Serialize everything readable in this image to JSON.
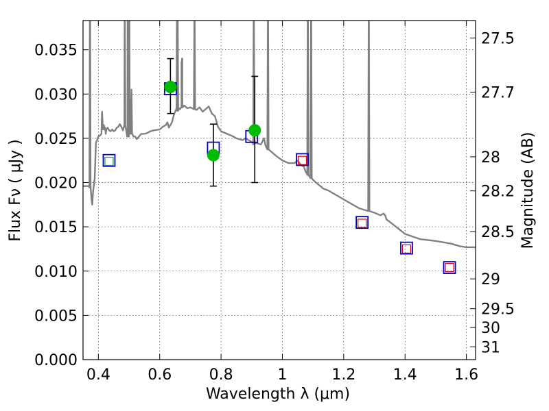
{
  "chart_data": {
    "type": "scatter",
    "xlabel": "Wavelength  λ (μm)",
    "ylabel": "Flux  Fν  ( μJy )",
    "y2label": "Magnitude (AB)",
    "xlim": [
      0.35,
      1.63
    ],
    "ylim": [
      0.0,
      0.0383
    ],
    "xticks": [
      0.4,
      0.6,
      0.8,
      1.0,
      1.2,
      1.4,
      1.6
    ],
    "xtick_labels": [
      "0.4",
      "0.6",
      "0.8",
      "1",
      "1.2",
      "1.4",
      "1.6"
    ],
    "yticks": [
      0.0,
      0.005,
      0.01,
      0.015,
      0.02,
      0.025,
      0.03,
      0.035
    ],
    "ytick_labels": [
      "0.000",
      "0.005",
      "0.010",
      "0.015",
      "0.020",
      "0.025",
      "0.030",
      "0.035"
    ],
    "y2ticks": [
      {
        "label": "27.5",
        "flux": 0.03632
      },
      {
        "label": "27.7",
        "flux": 0.03021
      },
      {
        "label": "28",
        "flux": 0.02291
      },
      {
        "label": "28.2",
        "flux": 0.01906
      },
      {
        "label": "28.5",
        "flux": 0.01446
      },
      {
        "label": "29",
        "flux": 0.00912
      },
      {
        "label": "29.5",
        "flux": 0.00575
      },
      {
        "label": "30",
        "flux": 0.00363
      },
      {
        "label": "31",
        "flux": 0.00145
      }
    ],
    "grid": true,
    "colors": {
      "model": "#808080",
      "model_box": "#0000cc",
      "observed": "#00bb00",
      "synthetic_green": "#00aa00",
      "synthetic_red": "#dd0000",
      "errorbar": "#000000"
    },
    "series": [
      {
        "name": "model spectrum",
        "kind": "line",
        "x": [
          0.35,
          0.37,
          0.375,
          0.378,
          0.38,
          0.383,
          0.388,
          0.39,
          0.392,
          0.396,
          0.4,
          0.405,
          0.41,
          0.412,
          0.415,
          0.418,
          0.42,
          0.422,
          0.424,
          0.426,
          0.43,
          0.435,
          0.44,
          0.445,
          0.45,
          0.455,
          0.46,
          0.465,
          0.47,
          0.475,
          0.48,
          0.485,
          0.49,
          0.495,
          0.5,
          0.502,
          0.505,
          0.508,
          0.51,
          0.515,
          0.52,
          0.525,
          0.53,
          0.535,
          0.54,
          0.55,
          0.56,
          0.57,
          0.58,
          0.6,
          0.61,
          0.62,
          0.625,
          0.63,
          0.64,
          0.645,
          0.65,
          0.655,
          0.658,
          0.662,
          0.667,
          0.672,
          0.68,
          0.69,
          0.7,
          0.72,
          0.73,
          0.74,
          0.75,
          0.76,
          0.77,
          0.78,
          0.79,
          0.8,
          0.82,
          0.84,
          0.85,
          0.86,
          0.87,
          0.88,
          0.89,
          0.9,
          0.905,
          0.91,
          0.92,
          0.93,
          0.94,
          0.945,
          0.95,
          0.96,
          0.98,
          1.0,
          1.02,
          1.04,
          1.05,
          1.06,
          1.07,
          1.075,
          1.08,
          1.085,
          1.09,
          1.1,
          1.11,
          1.12,
          1.128,
          1.13,
          1.135,
          1.15,
          1.2,
          1.25,
          1.3,
          1.32,
          1.33,
          1.335,
          1.34,
          1.345,
          1.36,
          1.4,
          1.45,
          1.5,
          1.55,
          1.58,
          1.6,
          1.63
        ],
        "y": [
          0.0196,
          0.0196,
          0.0193,
          0.018,
          0.0175,
          0.019,
          0.0205,
          0.0225,
          0.0245,
          0.0248,
          0.0252,
          0.0253,
          0.0255,
          0.028,
          0.026,
          0.0265,
          0.026,
          0.0262,
          0.0255,
          0.026,
          0.0262,
          0.0259,
          0.0258,
          0.026,
          0.0258,
          0.0259,
          0.0262,
          0.0263,
          0.0266,
          0.0263,
          0.0259,
          0.0265,
          0.026,
          0.0252,
          0.0252,
          0.028,
          0.0255,
          0.0305,
          0.0255,
          0.0252,
          0.0252,
          0.0249,
          0.0251,
          0.0253,
          0.0255,
          0.0255,
          0.0256,
          0.0258,
          0.0259,
          0.026,
          0.0263,
          0.0265,
          0.0268,
          0.0262,
          0.0268,
          0.0275,
          0.028,
          0.0285,
          0.0281,
          0.0284,
          0.0283,
          0.0285,
          0.0287,
          0.0284,
          0.0285,
          0.0282,
          0.0285,
          0.028,
          0.0283,
          0.0286,
          0.0278,
          0.0275,
          0.0263,
          0.0258,
          0.0255,
          0.0252,
          0.025,
          0.0249,
          0.0248,
          0.025,
          0.0248,
          0.0246,
          0.0243,
          0.0245,
          0.0244,
          0.0243,
          0.025,
          0.0242,
          0.0238,
          0.0236,
          0.023,
          0.0225,
          0.0222,
          0.0222,
          0.0225,
          0.022,
          0.0218,
          0.0213,
          0.021,
          0.0208,
          0.0206,
          0.0203,
          0.02,
          0.0197,
          0.0195,
          0.0194,
          0.0193,
          0.0191,
          0.0181,
          0.0171,
          0.0166,
          0.0163,
          0.0165,
          0.0163,
          0.0158,
          0.0157,
          0.0153,
          0.0142,
          0.0136,
          0.0134,
          0.0131,
          0.0128,
          0.0127,
          0.0127
        ],
        "emission_lines": [
          {
            "x": 0.3727,
            "peak": 0.0383
          },
          {
            "x": 0.4861,
            "peak": 0.0383
          },
          {
            "x": 0.4959,
            "peak": 0.0383
          },
          {
            "x": 0.5007,
            "peak": 0.0383
          },
          {
            "x": 0.6563,
            "peak": 0.0383
          },
          {
            "x": 0.6583,
            "peak": 0.0383
          },
          {
            "x": 0.6717,
            "peak": 0.0336
          },
          {
            "x": 0.6731,
            "peak": 0.034
          },
          {
            "x": 0.7135,
            "peak": 0.0383
          },
          {
            "x": 0.9069,
            "peak": 0.0383
          },
          {
            "x": 0.9531,
            "peak": 0.0383
          },
          {
            "x": 1.083,
            "peak": 0.0383
          },
          {
            "x": 1.0938,
            "peak": 0.0383
          },
          {
            "x": 1.2818,
            "peak": 0.0383
          }
        ]
      },
      {
        "name": "model band flux",
        "kind": "open-square",
        "color": "#0000cc",
        "x": [
          0.435,
          0.635,
          0.775,
          0.9,
          1.065,
          1.26,
          1.405,
          1.545
        ],
        "y": [
          0.0225,
          0.0306,
          0.0239,
          0.0252,
          0.0226,
          0.0155,
          0.0126,
          0.0104
        ]
      },
      {
        "name": "synthetic photometry (green)",
        "kind": "open-square-small",
        "color": "#00aa00",
        "x": [
          0.435
        ],
        "y": [
          0.0224
        ]
      },
      {
        "name": "synthetic photometry (red)",
        "kind": "open-square-small",
        "color": "#dd0000",
        "x": [
          1.065,
          1.26,
          1.405,
          1.545
        ],
        "y": [
          0.0225,
          0.0154,
          0.0125,
          0.0104
        ]
      },
      {
        "name": "observed photometry",
        "kind": "filled-circle",
        "color": "#00bb00",
        "x": [
          0.635,
          0.775,
          0.91
        ],
        "y": [
          0.0308,
          0.0231,
          0.0259
        ],
        "yerr_low": [
          0.0278,
          0.0196,
          0.02
        ],
        "yerr_high": [
          0.034,
          0.0266,
          0.032
        ]
      }
    ]
  }
}
